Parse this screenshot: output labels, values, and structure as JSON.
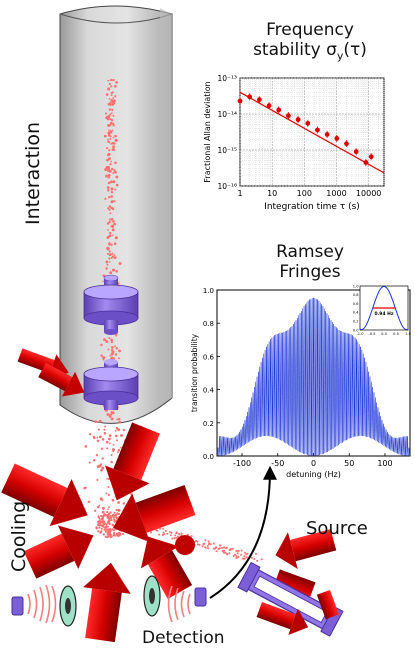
{
  "labels": {
    "interaction": "Interaction",
    "cooling": "Cooling",
    "detection": "Detection",
    "source": "Source",
    "freq_title_1": "Frequency",
    "freq_title_2": "stability σ",
    "freq_title_sub": "y",
    "freq_title_3": "(τ)",
    "ramsey_title_1": "Ramsey",
    "ramsey_title_2": "Fringes"
  },
  "chart_data": [
    {
      "type": "scatter",
      "xlabel": "Integration time τ (s)",
      "ylabel": "Fractional Allan deviation",
      "xscale": "log",
      "yscale": "log",
      "xlim": [
        1,
        30000
      ],
      "ylim": [
        1e-16,
        1e-13
      ],
      "xticks": [
        "1",
        "10",
        "100",
        "1000",
        "10000"
      ],
      "yticks": [
        "10⁻¹³",
        "10⁻¹⁴",
        "10⁻¹⁵",
        "10⁻¹⁶"
      ],
      "grid": true,
      "series": [
        {
          "x": [
            1,
            2,
            4,
            8,
            16,
            32,
            64,
            128,
            256,
            512,
            1024,
            2048,
            4096,
            8192,
            12000
          ],
          "y": [
            2.3e-14,
            3e-14,
            2.5e-14,
            1.7e-14,
            1.3e-14,
            9e-15,
            7e-15,
            5.5e-15,
            3.6e-15,
            2.7e-15,
            2.1e-15,
            1.5e-15,
            9e-16,
            4.5e-16,
            6.5e-16
          ]
        }
      ],
      "fit": {
        "slope": -0.5,
        "y_at_x1": 4e-14
      }
    },
    {
      "type": "line",
      "xlabel": "detuning (Hz)",
      "ylabel": "transition probability",
      "xlim": [
        -135,
        135
      ],
      "ylim": [
        0,
        1.0
      ],
      "xticks": [
        "-100",
        "-50",
        "0",
        "50",
        "100"
      ],
      "yticks": [
        "0.0",
        "0.2",
        "0.4",
        "0.6",
        "0.8",
        "1.0"
      ],
      "fringe_spacing_hz": 1.88,
      "envelope_halfwidth_hz": 100,
      "inset": {
        "xlim": [
          -1.0,
          1.0
        ],
        "ylim": [
          0,
          1.0
        ],
        "xticks": [
          "-1.0",
          "-0.5",
          "0.0",
          "0.5",
          "1.0"
        ],
        "yticks": [
          "0.0",
          "0.2",
          "0.4",
          "0.6",
          "0.8",
          "1.0"
        ],
        "annotation": "0.94 Hz"
      }
    }
  ],
  "colors": {
    "laser": "#e30000",
    "laser_dark": "#8a0000",
    "atoms": "#ff6f6f",
    "hardware": "#9a7ae8",
    "hardware_dark": "#5d3fb3",
    "tube": "#cdcdcd",
    "fringe": "#1a33d6",
    "fit": "#e60000",
    "points": "#e00000"
  }
}
